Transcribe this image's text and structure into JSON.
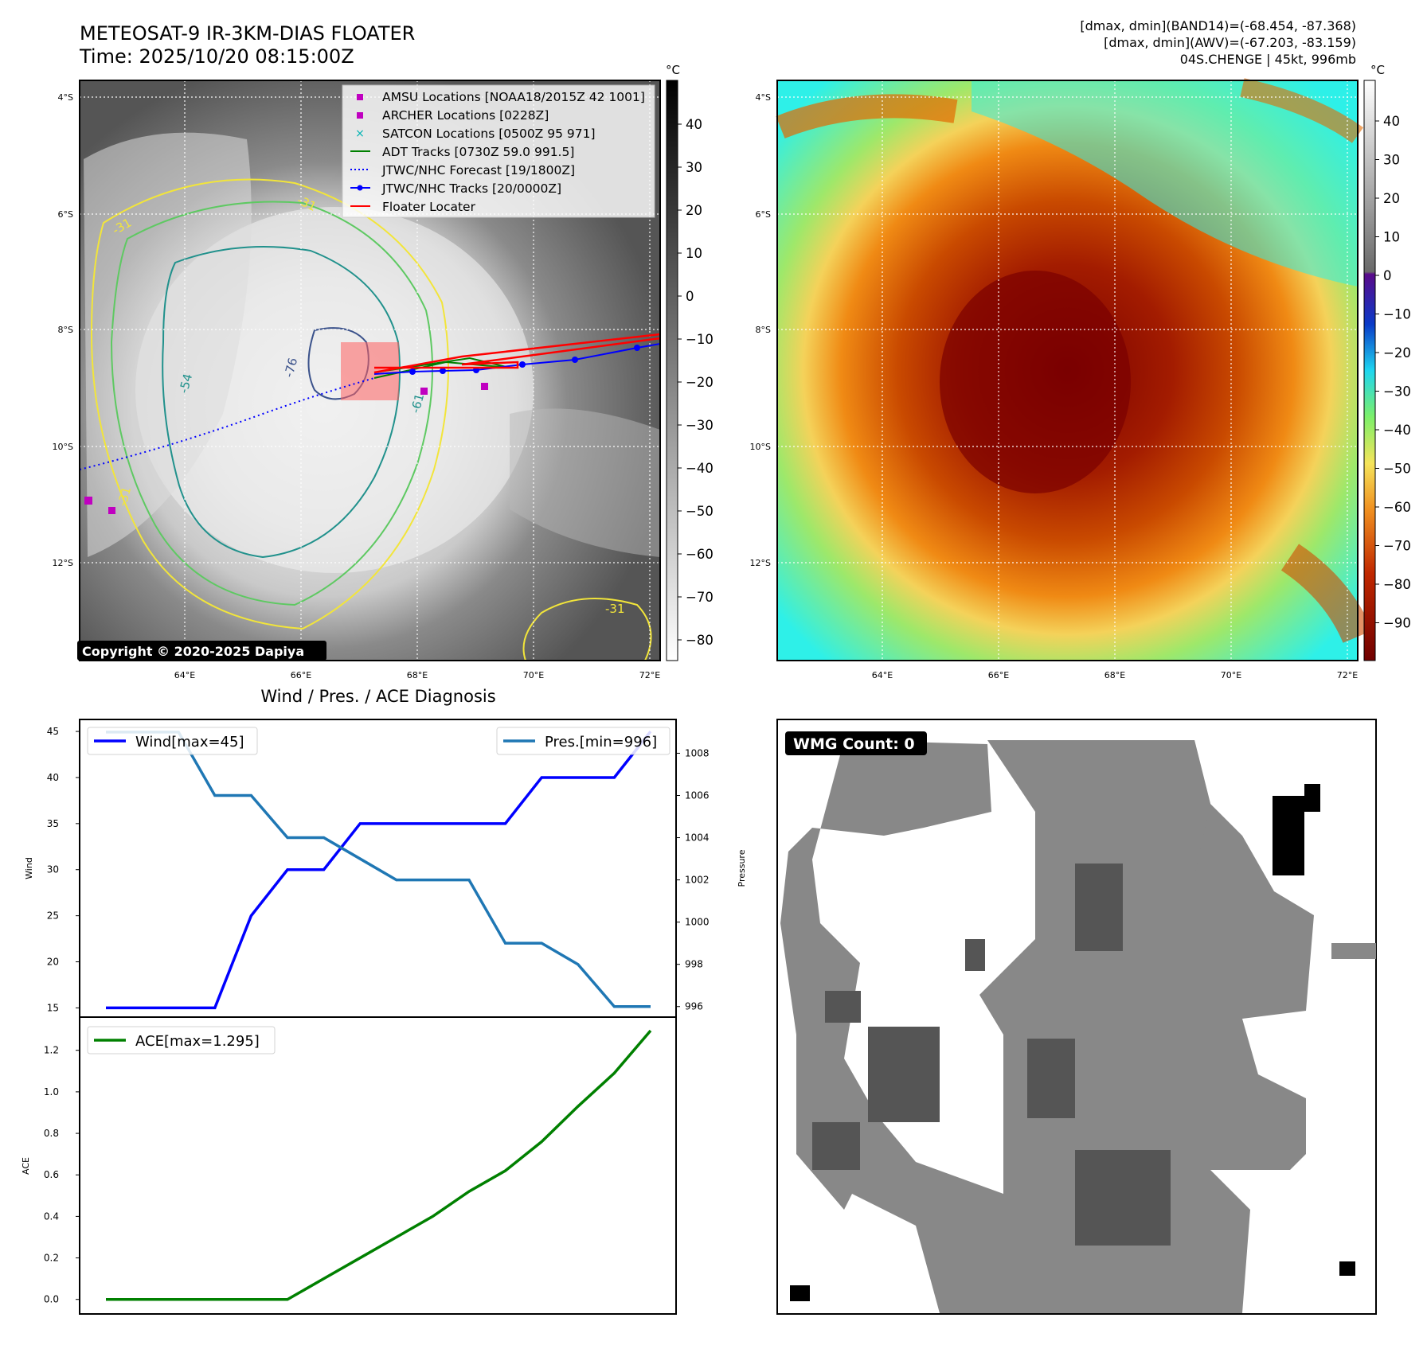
{
  "header": {
    "title_line1": "METEOSAT-9 IR-3KM-DIAS FLOATER",
    "title_line2": "Time: 2025/10/20 08:15:00Z",
    "info_line1": "[dmax, dmin](BAND14)=(-68.454, -87.368)",
    "info_line2": "[dmax, dmin](AWV)=(-67.203, -83.159)",
    "info_line3": "04S.CHENGE | 45kt, 996mb"
  },
  "colors": {
    "wind": "#0000ff",
    "pressure": "#1f77b4",
    "ace": "#008000",
    "amsu": "#c000c0",
    "satcon": "#00b3b3",
    "adt": "#008000",
    "jtwc": "#0000ff",
    "floater": "#ff0000",
    "contour_yellow": "#f2e53a",
    "contour_green": "#5ec962",
    "contour_teal": "#21918c",
    "contour_blue": "#3b528b"
  },
  "maps": {
    "lat_ticks": [
      "4°S",
      "6°S",
      "8°S",
      "10°S",
      "12°S"
    ],
    "lon_ticks": [
      "64°E",
      "66°E",
      "68°E",
      "70°E",
      "72°E"
    ],
    "copyright": "Copyright © 2020-2025 Dapiya",
    "contour_labels": [
      "-31",
      "-54",
      "-76",
      "-61",
      "-31",
      "-31",
      "-31"
    ],
    "legend": [
      {
        "label": "AMSU Locations [NOAA18/2015Z 42 1001]",
        "icon": "square-marker"
      },
      {
        "label": "ARCHER Locations [0228Z]",
        "icon": "square-marker"
      },
      {
        "label": "SATCON Locations [0500Z 95 971]",
        "icon": "x-marker"
      },
      {
        "label": "ADT Tracks [0730Z 59.0 991.5]",
        "icon": "line"
      },
      {
        "label": "JTWC/NHC Forecast [19/1800Z]",
        "icon": "dotted-line"
      },
      {
        "label": "JTWC/NHC Tracks [20/0000Z]",
        "icon": "line-dot"
      },
      {
        "label": "Floater Locater",
        "icon": "line"
      }
    ],
    "gray_cbar": {
      "unit": "°C",
      "ticks": [
        "40",
        "30",
        "20",
        "10",
        "0",
        "−10",
        "−20",
        "−30",
        "−40",
        "−50",
        "−60",
        "−70",
        "−80"
      ]
    },
    "color_cbar": {
      "unit": "°C",
      "ticks": [
        "40",
        "30",
        "20",
        "10",
        "0",
        "−10",
        "−20",
        "−30",
        "−40",
        "−50",
        "−60",
        "−70",
        "−80",
        "−90"
      ]
    }
  },
  "wmg": {
    "label": "WMG Count: 0"
  },
  "chart_data": [
    {
      "type": "line",
      "title": "Wind / Pres. / ACE Diagnosis",
      "x": [
        0,
        1,
        2,
        3,
        4,
        5,
        6,
        7,
        8,
        9,
        10,
        11,
        12,
        13,
        14,
        15
      ],
      "series": [
        {
          "name": "Wind[max=45]",
          "axis": "left",
          "values": [
            15,
            15,
            15,
            15,
            25,
            30,
            30,
            35,
            35,
            35,
            35,
            35,
            40,
            40,
            40,
            45
          ]
        },
        {
          "name": "Pres.[min=996]",
          "axis": "right",
          "values": [
            1009,
            1009,
            1009,
            1006,
            1006,
            1004,
            1004,
            1003,
            1002,
            1002,
            1002,
            999,
            999,
            998,
            996,
            996
          ]
        }
      ],
      "ylabel": "Wind",
      "ylabel_right": "Pressure",
      "yticks": [
        15,
        20,
        25,
        30,
        35,
        40,
        45
      ],
      "yticks_right": [
        996,
        998,
        1000,
        1002,
        1004,
        1006,
        1008
      ],
      "ylim": [
        14,
        46.3
      ],
      "ylim_right": [
        995.5,
        1009.6
      ],
      "legend": [
        "top-left",
        "top-right"
      ]
    },
    {
      "type": "line",
      "x": [
        0,
        1,
        2,
        3,
        4,
        5,
        6,
        7,
        8,
        9,
        10,
        11,
        12,
        13,
        14,
        15
      ],
      "series": [
        {
          "name": "ACE[max=1.295]",
          "values": [
            0,
            0,
            0,
            0,
            0,
            0,
            0.1,
            0.2,
            0.3,
            0.4,
            0.52,
            0.62,
            0.76,
            0.93,
            1.09,
            1.295
          ]
        }
      ],
      "ylabel": "ACE",
      "yticks": [
        0.0,
        0.2,
        0.4,
        0.6,
        0.8,
        1.0,
        1.2
      ],
      "ylim": [
        -0.07,
        1.36
      ],
      "legend": "top-left"
    }
  ]
}
